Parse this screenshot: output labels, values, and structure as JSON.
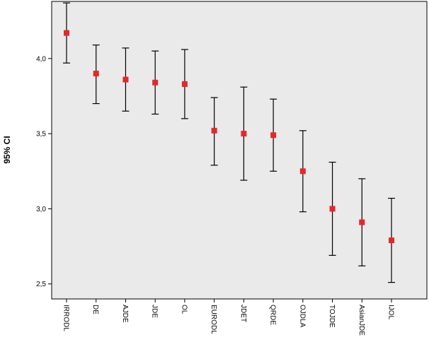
{
  "chart_data": {
    "type": "errorbar",
    "title": "",
    "xlabel": "",
    "ylabel": "95% CI",
    "ylim": [
      2.4,
      4.38
    ],
    "yticks": [
      "2,5",
      "3,0",
      "3,5",
      "4,0"
    ],
    "ytick_values": [
      2.5,
      3.0,
      3.5,
      4.0
    ],
    "grid": false,
    "marker_color": "#e8262a",
    "plot_background": "#eaeaea",
    "categories": [
      "IRRODL",
      "DE",
      "AJDE",
      "JDE",
      "OL",
      "EURODL",
      "JDET",
      "QRDE",
      "OJDLA",
      "TOJDE",
      "AsianJDE",
      "IJOL"
    ],
    "means": [
      4.17,
      3.9,
      3.86,
      3.84,
      3.83,
      3.52,
      3.5,
      3.49,
      3.25,
      3.0,
      2.91,
      2.79
    ],
    "lower": [
      3.97,
      3.7,
      3.65,
      3.63,
      3.6,
      3.29,
      3.19,
      3.25,
      2.98,
      2.69,
      2.62,
      2.51
    ],
    "upper": [
      4.37,
      4.09,
      4.07,
      4.05,
      4.06,
      3.74,
      3.81,
      3.73,
      3.52,
      3.31,
      3.2,
      3.07
    ]
  }
}
